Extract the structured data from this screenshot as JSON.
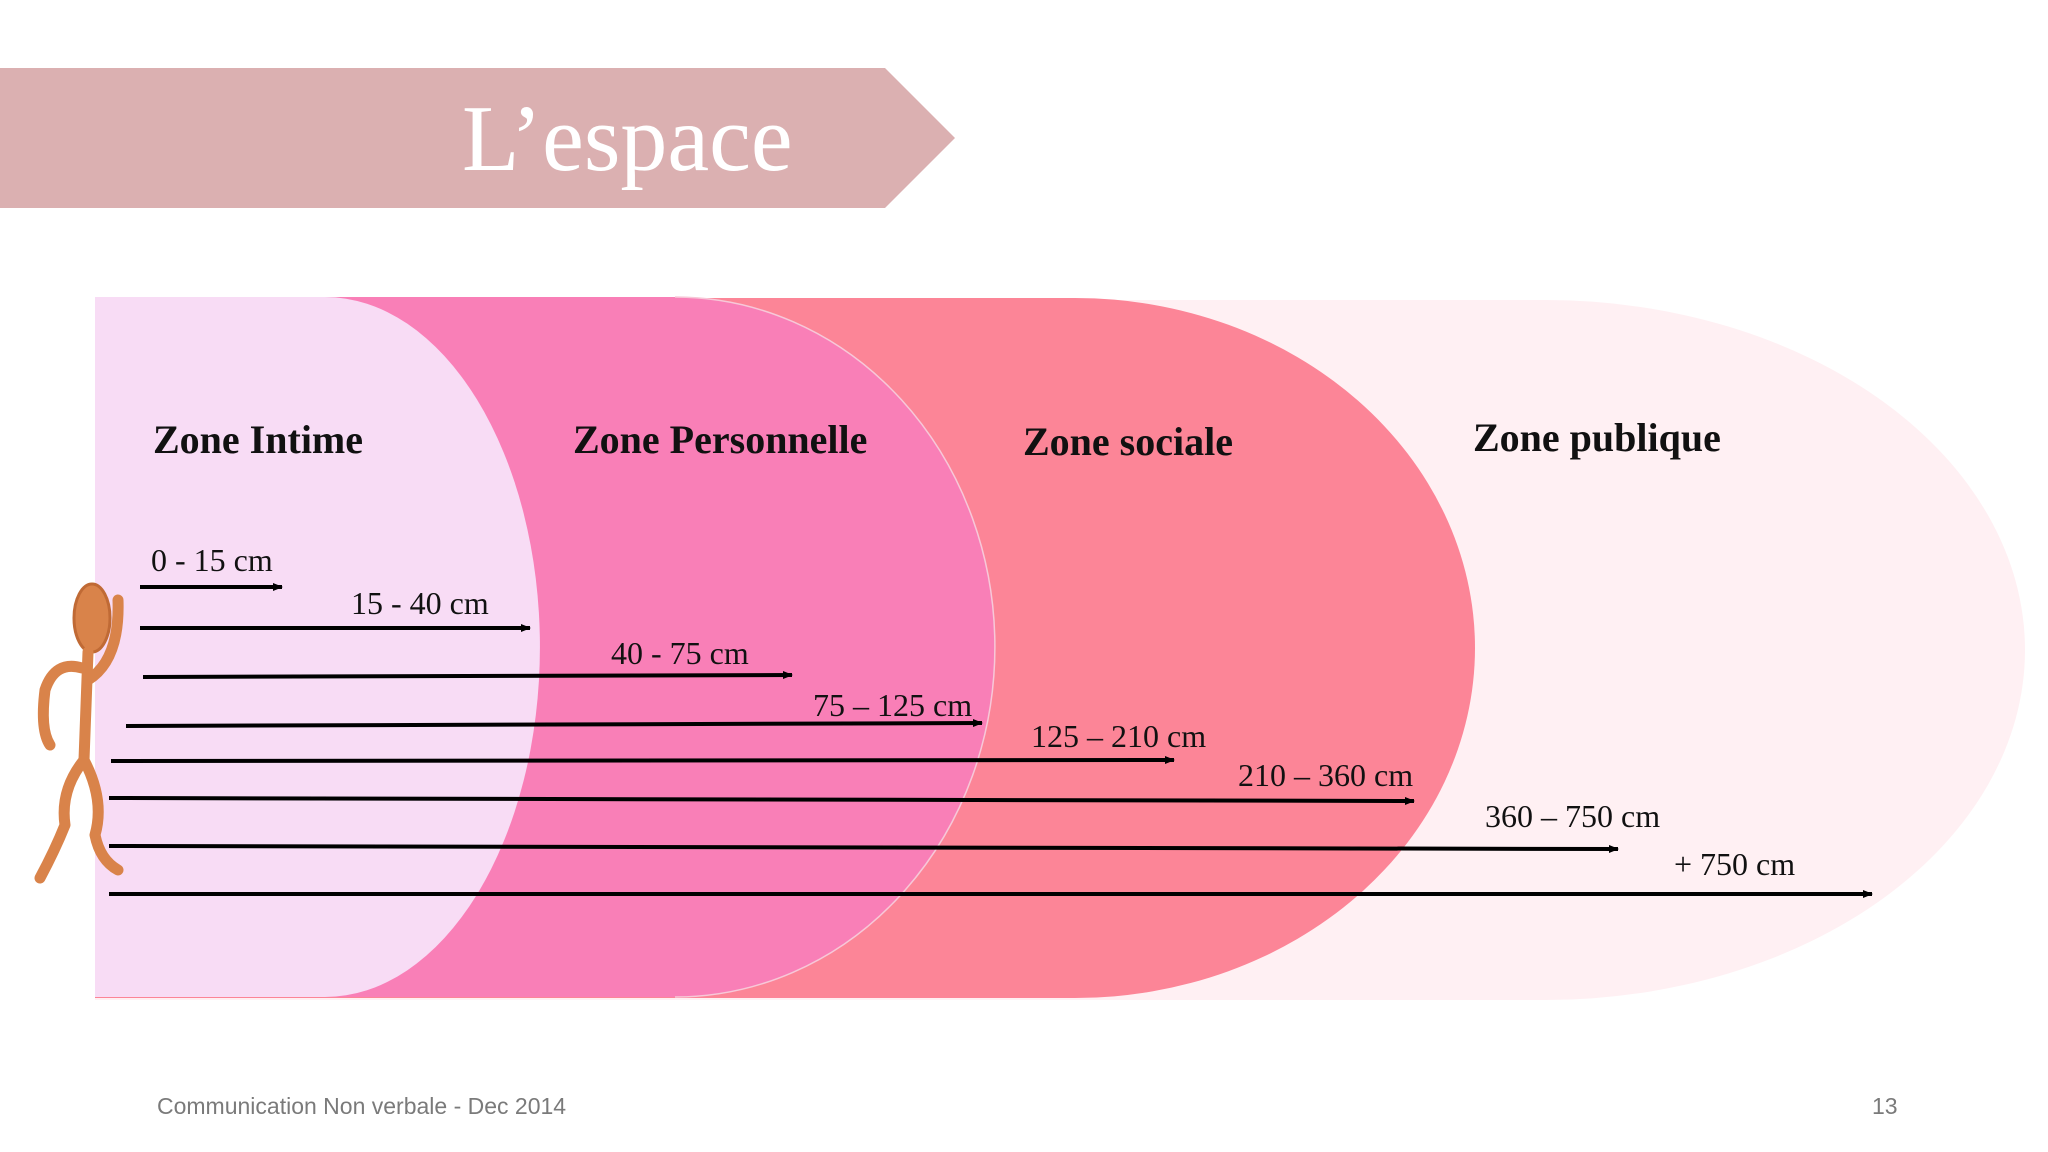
{
  "slide": {
    "title": "L’espace",
    "footer": "Communication Non verbale - Dec 2014",
    "page_number": "13"
  },
  "colors": {
    "banner": "#dbb0b1",
    "zone_intime": "#f8dcf5",
    "zone_personnelle": "#f97fb7",
    "zone_sociale": "#fc8597",
    "zone_publique": "#fff0f3",
    "arrow": "#000000",
    "figure": "#d9834a"
  },
  "zones": [
    {
      "label": "Zone Intime"
    },
    {
      "label": "Zone Personnelle"
    },
    {
      "label": "Zone sociale"
    },
    {
      "label": "Zone publique"
    }
  ],
  "distances": [
    {
      "label": "0 - 15 cm"
    },
    {
      "label": "15 - 40 cm"
    },
    {
      "label": "40 - 75 cm"
    },
    {
      "label": "75 – 125 cm"
    },
    {
      "label": "125 – 210  cm"
    },
    {
      "label": "210 – 360  cm"
    },
    {
      "label": "360 – 750  cm"
    },
    {
      "label": "+ 750  cm"
    }
  ]
}
